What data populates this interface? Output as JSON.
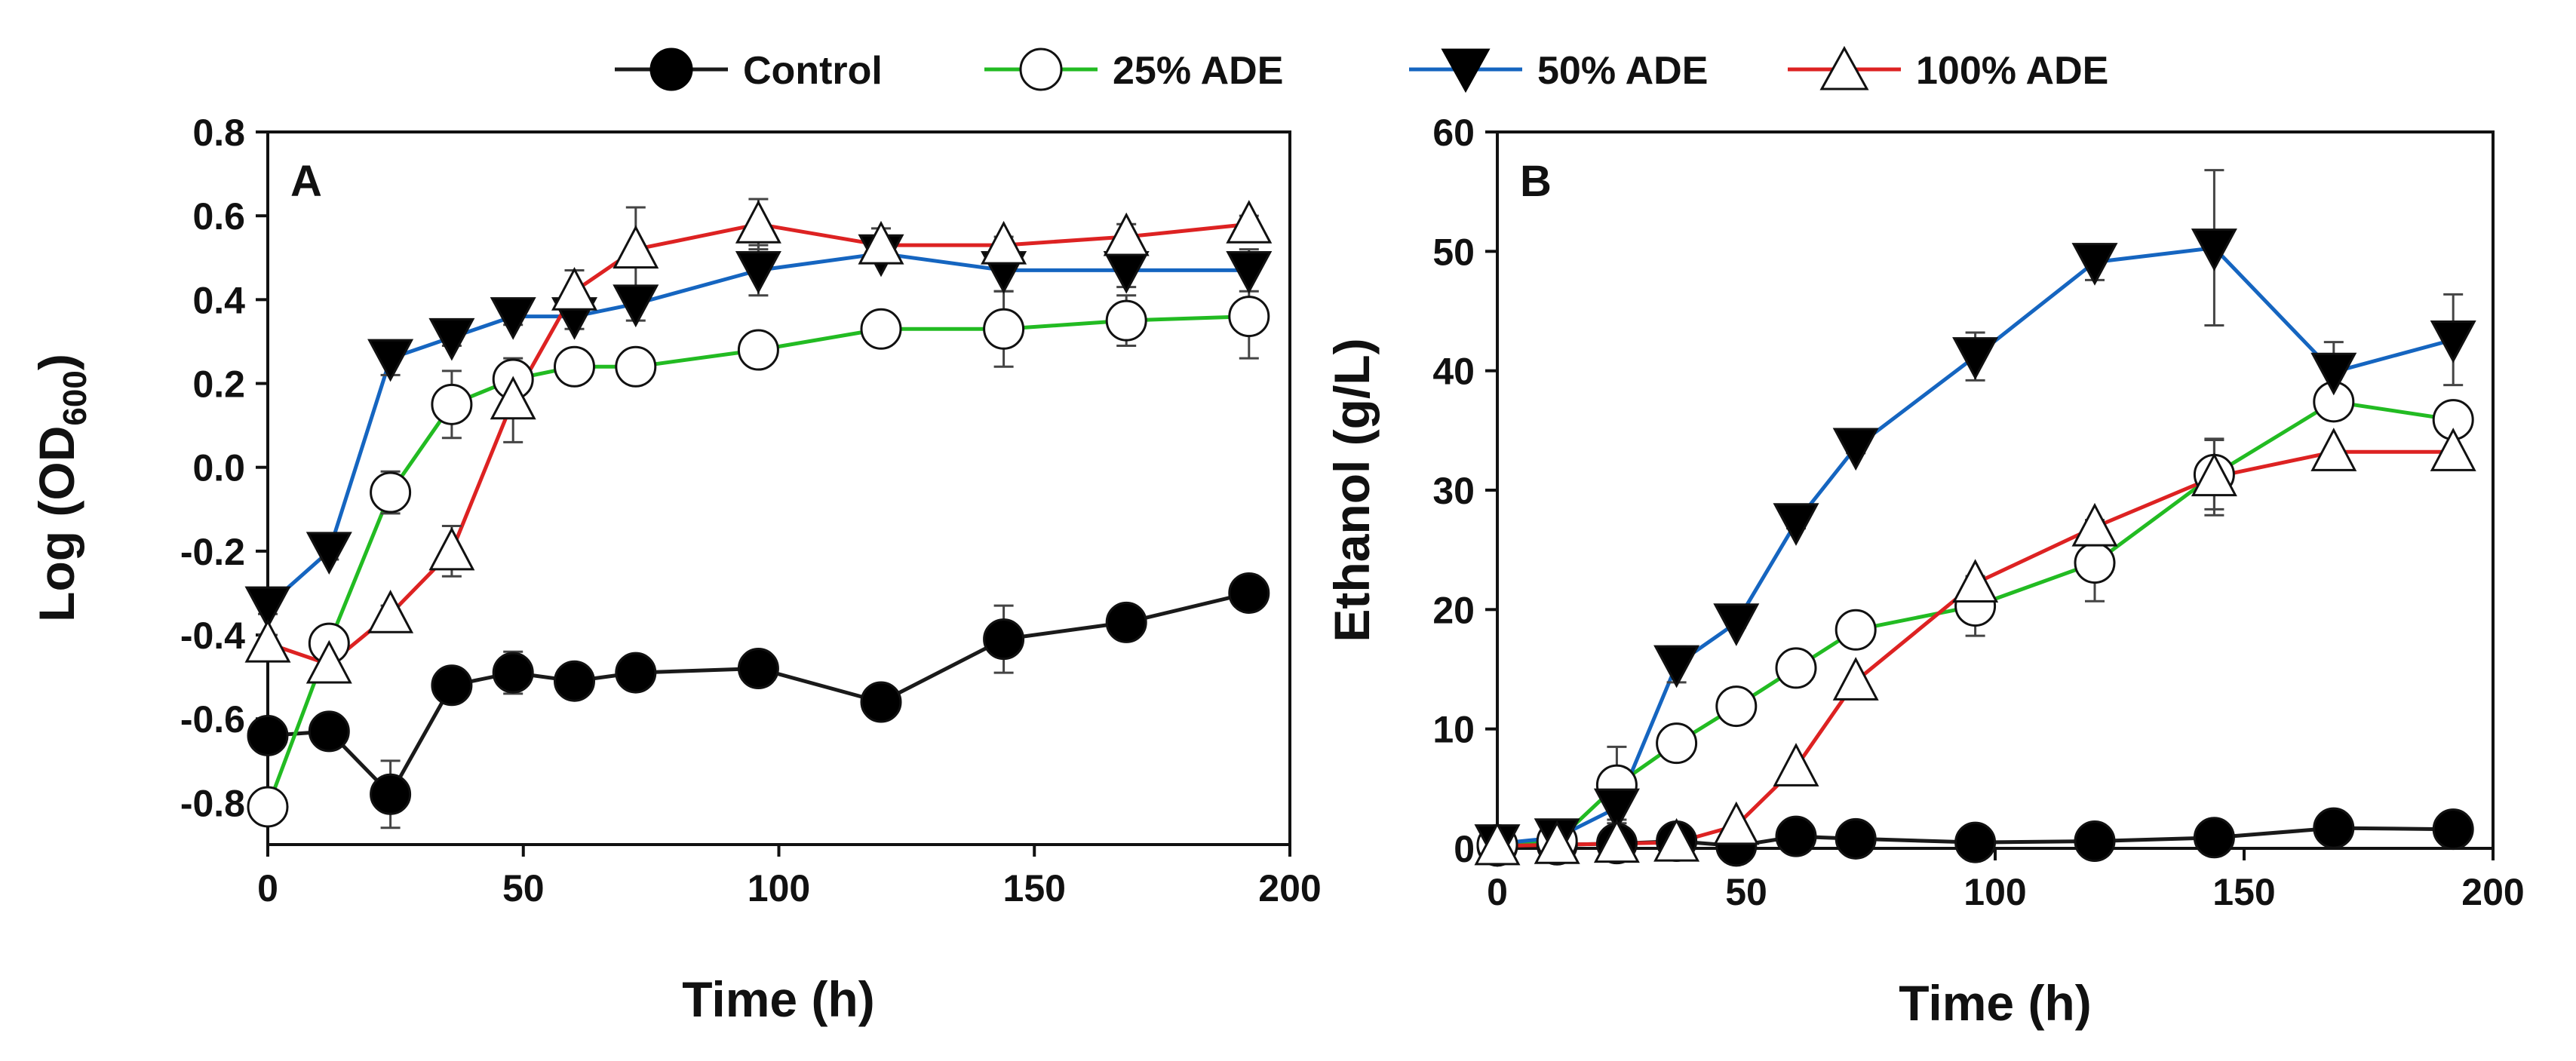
{
  "legend": [
    {
      "name": "Control",
      "line": "#1a1a1a",
      "marker": "filled-circle"
    },
    {
      "name": "25% ADE",
      "line": "#22bb22",
      "marker": "open-circle"
    },
    {
      "name": "50% ADE",
      "line": "#1565c0",
      "marker": "filled-down-triangle"
    },
    {
      "name": "100% ADE",
      "line": "#dd2222",
      "marker": "open-up-triangle"
    }
  ],
  "chart_data": [
    {
      "type": "line",
      "panel": "A",
      "xlabel": "Time (h)",
      "ylabel_main": "Log (OD",
      "ylabel_sub": "600",
      "ylabel_close": ")",
      "xlim": [
        0,
        200
      ],
      "ylim": [
        -0.9,
        0.8
      ],
      "xticks": [
        0,
        50,
        100,
        150,
        200
      ],
      "xtick_labels": [
        "0",
        "50",
        "100",
        "150",
        "200"
      ],
      "yticks": [
        -0.8,
        -0.6,
        -0.4,
        -0.2,
        0.0,
        0.2,
        0.4,
        0.6,
        0.8
      ],
      "ytick_labels": [
        "-0.8",
        "-0.6",
        "-0.4",
        "-0.2",
        "0.0",
        "0.2",
        "0.4",
        "0.6",
        "0.8"
      ],
      "series": [
        {
          "name": "Control",
          "x": [
            0,
            12,
            24,
            36,
            48,
            60,
            72,
            96,
            120,
            144,
            168,
            192
          ],
          "values": [
            -0.64,
            -0.63,
            -0.78,
            -0.52,
            -0.49,
            -0.51,
            -0.49,
            -0.48,
            -0.56,
            -0.41,
            -0.37,
            -0.3
          ],
          "err": [
            0.02,
            0.02,
            0.08,
            0.03,
            0.05,
            0.03,
            0.02,
            0.02,
            0.02,
            0.08,
            0.03,
            0.02
          ]
        },
        {
          "name": "25% ADE",
          "x": [
            0,
            12,
            24,
            36,
            48,
            60,
            72,
            96,
            120,
            144,
            168,
            192
          ],
          "values": [
            -0.81,
            -0.42,
            -0.06,
            0.15,
            0.21,
            0.24,
            0.24,
            0.28,
            0.33,
            0.33,
            0.35,
            0.36
          ],
          "err": [
            0.02,
            0.02,
            0.05,
            0.08,
            0.03,
            0.02,
            0.04,
            0.02,
            0.02,
            0.09,
            0.06,
            0.1
          ]
        },
        {
          "name": "50% ADE",
          "x": [
            0,
            12,
            24,
            36,
            48,
            60,
            72,
            96,
            120,
            144,
            168,
            192
          ],
          "values": [
            -0.33,
            -0.2,
            0.26,
            0.31,
            0.36,
            0.36,
            0.39,
            0.47,
            0.51,
            0.47,
            0.47,
            0.47
          ],
          "err": [
            0.02,
            0.02,
            0.04,
            0.02,
            0.02,
            0.03,
            0.04,
            0.06,
            0.02,
            0.05,
            0.04,
            0.05
          ]
        },
        {
          "name": "100% ADE",
          "x": [
            0,
            12,
            24,
            36,
            48,
            60,
            72,
            96,
            120,
            144,
            168,
            192
          ],
          "values": [
            -0.42,
            -0.47,
            -0.35,
            -0.2,
            0.16,
            0.42,
            0.52,
            0.58,
            0.53,
            0.53,
            0.55,
            0.58
          ],
          "err": [
            0.02,
            0.03,
            0.02,
            0.06,
            0.1,
            0.05,
            0.1,
            0.06,
            0.04,
            0.02,
            0.03,
            0.02
          ]
        }
      ]
    },
    {
      "type": "line",
      "panel": "B",
      "xlabel": "Time (h)",
      "ylabel": "Ethanol (g/L)",
      "xlim": [
        0,
        200
      ],
      "ylim": [
        0,
        60
      ],
      "xticks": [
        0,
        50,
        100,
        150,
        200
      ],
      "xtick_labels": [
        "0",
        "50",
        "100",
        "150",
        "200"
      ],
      "yticks": [
        0,
        10,
        20,
        30,
        40,
        50,
        60
      ],
      "ytick_labels": [
        "0",
        "10",
        "20",
        "30",
        "40",
        "50",
        "60"
      ],
      "series": [
        {
          "name": "Control",
          "x": [
            0,
            12,
            24,
            36,
            48,
            60,
            72,
            96,
            120,
            144,
            168,
            192
          ],
          "values": [
            0.2,
            0.3,
            0.4,
            0.6,
            0.2,
            1.0,
            0.8,
            0.5,
            0.6,
            0.9,
            1.7,
            1.6
          ],
          "err": [
            0.2,
            0.2,
            0.2,
            0.2,
            0.2,
            0.3,
            0.2,
            0.2,
            0.2,
            0.3,
            0.3,
            0.3
          ]
        },
        {
          "name": "25% ADE",
          "x": [
            0,
            12,
            24,
            36,
            48,
            60,
            72,
            96,
            120,
            144,
            168,
            192
          ],
          "values": [
            0.3,
            0.6,
            5.3,
            8.8,
            11.9,
            15.1,
            18.3,
            20.3,
            23.9,
            31.3,
            37.4,
            35.9
          ],
          "err": [
            0.2,
            0.2,
            3.2,
            0.5,
            0.4,
            0.5,
            0.5,
            2.5,
            3.2,
            2.9,
            1.2,
            1.0
          ]
        },
        {
          "name": "50% ADE",
          "x": [
            0,
            12,
            24,
            36,
            48,
            60,
            72,
            96,
            120,
            144,
            168,
            192
          ],
          "values": [
            0.4,
            0.9,
            3.4,
            15.4,
            18.9,
            27.3,
            33.6,
            41.2,
            49.1,
            50.3,
            39.9,
            42.6
          ],
          "err": [
            0.2,
            0.3,
            1.0,
            1.5,
            0.4,
            0.5,
            0.5,
            2.0,
            1.5,
            6.5,
            2.5,
            3.8
          ]
        },
        {
          "name": "100% ADE",
          "x": [
            0,
            12,
            24,
            36,
            48,
            60,
            72,
            96,
            120,
            144,
            168,
            192
          ],
          "values": [
            0.2,
            0.3,
            0.4,
            0.5,
            1.9,
            6.8,
            14.0,
            22.2,
            26.9,
            31.1,
            33.2,
            33.2
          ],
          "err": [
            0.2,
            0.2,
            0.2,
            0.2,
            0.3,
            0.4,
            0.4,
            0.5,
            0.6,
            3.2,
            0.4,
            0.4
          ]
        }
      ]
    }
  ]
}
